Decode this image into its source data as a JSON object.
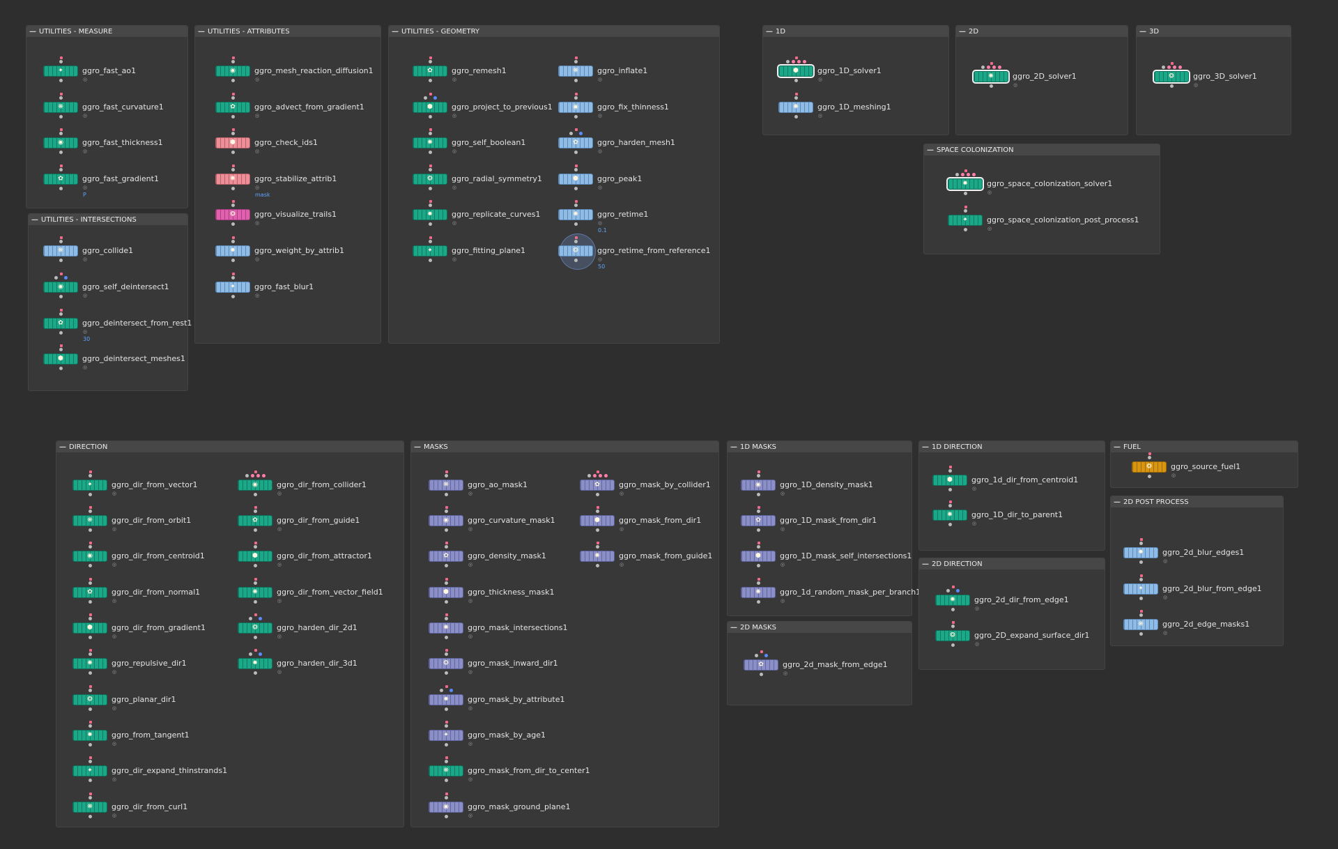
{
  "boxes": [
    {
      "title": "UTILITIES - MEASURE",
      "nodes": [
        {
          "label": "ggro_fast_ao1",
          "color": "green"
        },
        {
          "label": "ggro_fast_curvature1",
          "color": "green"
        },
        {
          "label": "ggro_fast_thickness1",
          "color": "green"
        },
        {
          "label": "ggro_fast_gradient1",
          "color": "green",
          "param": "P"
        }
      ]
    },
    {
      "title": "UTILITIES - INTERSECTIONS",
      "nodes": [
        {
          "label": "ggro_collide1",
          "color": "blue"
        },
        {
          "label": "ggro_self_deintersect1",
          "color": "green"
        },
        {
          "label": "ggro_deintersect_from_rest1",
          "color": "green",
          "param": "30"
        },
        {
          "label": "ggro_deintersect_meshes1",
          "color": "green"
        }
      ]
    },
    {
      "title": "UTILITIES - ATTRIBUTES",
      "nodes": [
        {
          "label": "ggro_mesh_reaction_diffusion1",
          "color": "green"
        },
        {
          "label": "ggro_advect_from_gradient1",
          "color": "green"
        },
        {
          "label": "ggro_check_ids1",
          "color": "pink"
        },
        {
          "label": "ggro_stabilize_attrib1",
          "color": "pink",
          "param": "mask"
        },
        {
          "label": "ggro_visualize_trails1",
          "color": "magenta"
        },
        {
          "label": "ggro_weight_by_attrib1",
          "color": "blue"
        },
        {
          "label": "ggro_fast_blur1",
          "color": "blue"
        }
      ]
    },
    {
      "title": "UTILITIES - GEOMETRY",
      "nodes": [
        {
          "label": "ggro_remesh1",
          "color": "green"
        },
        {
          "label": "ggro_project_to_previous1",
          "color": "green"
        },
        {
          "label": "ggro_self_boolean1",
          "color": "green"
        },
        {
          "label": "ggro_radial_symmetry1",
          "color": "green"
        },
        {
          "label": "ggro_replicate_curves1",
          "color": "green"
        },
        {
          "label": "ggro_fitting_plane1",
          "color": "green"
        },
        {
          "label": "ggro_inflate1",
          "color": "blue"
        },
        {
          "label": "ggro_fix_thinness1",
          "color": "blue"
        },
        {
          "label": "ggro_harden_mesh1",
          "color": "blue"
        },
        {
          "label": "ggro_peak1",
          "color": "blue"
        },
        {
          "label": "ggro_retime1",
          "color": "blue",
          "param": "0.1"
        },
        {
          "label": "ggro_retime_from_reference1",
          "color": "blue",
          "param": "50"
        }
      ]
    },
    {
      "title": "1D",
      "nodes": [
        {
          "label": "ggro_1D_solver1",
          "color": "green"
        },
        {
          "label": "ggro_1D_meshing1",
          "color": "blue"
        }
      ]
    },
    {
      "title": "2D",
      "nodes": [
        {
          "label": "ggro_2D_solver1",
          "color": "green"
        }
      ]
    },
    {
      "title": "3D",
      "nodes": [
        {
          "label": "ggro_3D_solver1",
          "color": "green"
        }
      ]
    },
    {
      "title": "SPACE COLONIZATION",
      "nodes": [
        {
          "label": "ggro_space_colonization_solver1",
          "color": "green"
        },
        {
          "label": "ggro_space_colonization_post_process1",
          "color": "green"
        }
      ]
    },
    {
      "title": "DIRECTION",
      "nodes": [
        {
          "label": "ggro_dir_from_vector1",
          "color": "green"
        },
        {
          "label": "ggro_dir_from_orbit1",
          "color": "green"
        },
        {
          "label": "ggro_dir_from_centroid1",
          "color": "green"
        },
        {
          "label": "ggro_dir_from_normal1",
          "color": "green"
        },
        {
          "label": "ggro_dir_from_gradient1",
          "color": "green"
        },
        {
          "label": "ggro_repulsive_dir1",
          "color": "green"
        },
        {
          "label": "ggro_planar_dir1",
          "color": "green"
        },
        {
          "label": "ggro_from_tangent1",
          "color": "green"
        },
        {
          "label": "ggro_dir_expand_thinstrands1",
          "color": "green"
        },
        {
          "label": "ggro_dir_from_curl1",
          "color": "green"
        },
        {
          "label": "ggro_dir_from_collider1",
          "color": "green"
        },
        {
          "label": "ggro_dir_from_guide1",
          "color": "green"
        },
        {
          "label": "ggro_dir_from_attractor1",
          "color": "green"
        },
        {
          "label": "ggro_dir_from_vector_field1",
          "color": "green"
        },
        {
          "label": "ggro_harden_dir_2d1",
          "color": "green"
        },
        {
          "label": "ggro_harden_dir_3d1",
          "color": "green"
        }
      ]
    },
    {
      "title": "MASKS",
      "nodes": [
        {
          "label": "ggro_ao_mask1",
          "color": "lav"
        },
        {
          "label": "ggro_curvature_mask1",
          "color": "lav"
        },
        {
          "label": "ggro_density_mask1",
          "color": "lav"
        },
        {
          "label": "ggro_thickness_mask1",
          "color": "lav"
        },
        {
          "label": "ggro_mask_intersections1",
          "color": "lav"
        },
        {
          "label": "ggro_mask_inward_dir1",
          "color": "lav"
        },
        {
          "label": "ggro_mask_by_attribute1",
          "color": "lav"
        },
        {
          "label": "ggro_mask_by_age1",
          "color": "lav"
        },
        {
          "label": "ggro_mask_from_dir_to_center1",
          "color": "green"
        },
        {
          "label": "ggro_mask_ground_plane1",
          "color": "lav"
        },
        {
          "label": "ggro_mask_by_collider1",
          "color": "lav"
        },
        {
          "label": "ggro_mask_from_dir1",
          "color": "lav"
        },
        {
          "label": "ggro_mask_from_guide1",
          "color": "lav"
        }
      ]
    },
    {
      "title": "1D MASKS",
      "nodes": [
        {
          "label": "ggro_1D_density_mask1",
          "color": "lav"
        },
        {
          "label": "ggro_1D_mask_from_dir1",
          "color": "lav"
        },
        {
          "label": "ggro_1D_mask_self_intersections1",
          "color": "lav"
        },
        {
          "label": "ggro_1d_random_mask_per_branch1",
          "color": "lav"
        }
      ]
    },
    {
      "title": "2D MASKS",
      "nodes": [
        {
          "label": "ggro_2d_mask_from_edge1",
          "color": "lav"
        }
      ]
    },
    {
      "title": "1D DIRECTION",
      "nodes": [
        {
          "label": "ggro_1d_dir_from_centroid1",
          "color": "green"
        },
        {
          "label": "ggro_1D_dir_to_parent1",
          "color": "green"
        }
      ]
    },
    {
      "title": "2D DIRECTION",
      "nodes": [
        {
          "label": "ggro_2d_dir_from_edge1",
          "color": "green"
        },
        {
          "label": "ggro_2D_expand_surface_dir1",
          "color": "green"
        }
      ]
    },
    {
      "title": "FUEL",
      "nodes": [
        {
          "label": "ggro_source_fuel1",
          "color": "orange"
        }
      ]
    },
    {
      "title": "2D POST PROCESS",
      "nodes": [
        {
          "label": "ggro_2d_blur_edges1",
          "color": "blue"
        },
        {
          "label": "ggro_2d_blur_from_edge1",
          "color": "blue"
        },
        {
          "label": "ggro_2d_edge_masks1",
          "color": "blue"
        }
      ]
    }
  ],
  "colors": {
    "background": "#2e2e2e",
    "box": "#383838",
    "node_green": "#1ba889",
    "node_blue": "#8dbce9",
    "node_lavender": "#8a8fc9",
    "node_pink": "#f08e98",
    "node_magenta": "#e25fb0",
    "node_orange": "#d8950f",
    "param_text": "#62a3ff"
  }
}
